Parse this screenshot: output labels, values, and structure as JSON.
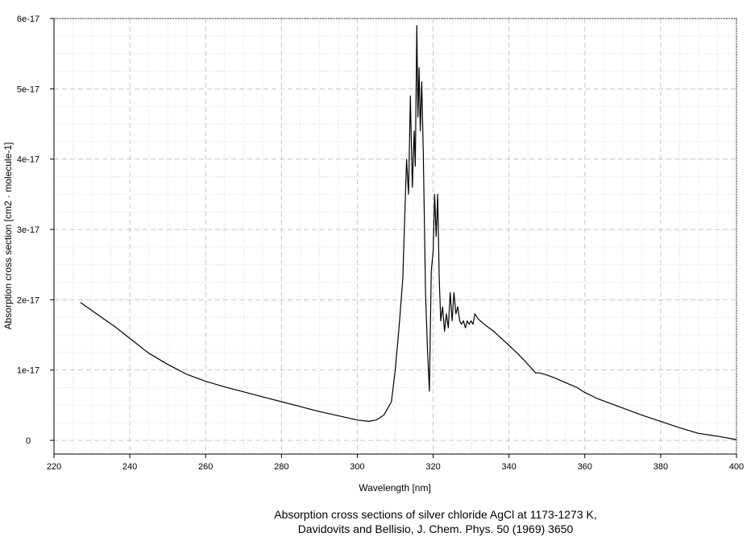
{
  "chart_data": {
    "type": "line",
    "xlabel": "Wavelength [nm]",
    "ylabel": "Absorption cross section [cm2 · molecule-1]",
    "xlim": [
      220,
      400
    ],
    "ylim": [
      0,
      6e-17
    ],
    "x_ticks": [
      220,
      240,
      260,
      280,
      300,
      320,
      340,
      360,
      380,
      400
    ],
    "x_tick_labels": [
      "220",
      "240",
      "260",
      "280",
      "300",
      "320",
      "340",
      "360",
      "380",
      "400"
    ],
    "y_ticks": [
      0,
      1e-17,
      2e-17,
      3e-17,
      4e-17,
      5e-17,
      6e-17
    ],
    "y_tick_labels": [
      "0",
      "1e-17",
      "2e-17",
      "3e-17",
      "4e-17",
      "5e-17",
      "6e-17"
    ],
    "grid": true,
    "series": [
      {
        "color": "#000000",
        "x": [
          227,
          232,
          236,
          240,
          245,
          250,
          255,
          260,
          265,
          270,
          275,
          280,
          285,
          290,
          295,
          300,
          303,
          305,
          307,
          309,
          310,
          311,
          312,
          313,
          313.5,
          314,
          314.5,
          315,
          315.3,
          315.7,
          316,
          316.3,
          316.6,
          317,
          317.4,
          318,
          318.5,
          319,
          319.5,
          320,
          320.4,
          320.8,
          321.2,
          321.6,
          322,
          322.5,
          323,
          323.5,
          324,
          324.5,
          325,
          325.5,
          326,
          326.5,
          327,
          327.5,
          328,
          328.5,
          329,
          329.5,
          330,
          330.5,
          331,
          332,
          334,
          336,
          338,
          340,
          342,
          344,
          346,
          347,
          348,
          350,
          352,
          355,
          358,
          360,
          362,
          363,
          365,
          370,
          375,
          380,
          385,
          390,
          395,
          400
        ],
        "y": [
          1.96e-17,
          1.77e-17,
          1.62e-17,
          1.45e-17,
          1.24e-17,
          1.08e-17,
          9.4e-18,
          8.4e-18,
          7.6e-18,
          6.9e-18,
          6.2e-18,
          5.5e-18,
          4.8e-18,
          4.1e-18,
          3.5e-18,
          2.9e-18,
          2.7e-18,
          2.9e-18,
          3.6e-18,
          5.5e-18,
          1e-17,
          1.6e-17,
          2.3e-17,
          4e-17,
          3.5e-17,
          4.9e-17,
          3.6e-17,
          4.4e-17,
          3.9e-17,
          5.9e-17,
          4.6e-17,
          5.3e-17,
          4.4e-17,
          5.1e-17,
          4.1e-17,
          2.1e-17,
          1.3e-17,
          7e-18,
          2.4e-17,
          2.7e-17,
          3.5e-17,
          2.9e-17,
          3.5e-17,
          2.3e-17,
          1.7e-17,
          1.9e-17,
          1.55e-17,
          1.8e-17,
          1.6e-17,
          2.1e-17,
          1.7e-17,
          2.1e-17,
          1.8e-17,
          1.9e-17,
          1.7e-17,
          1.65e-17,
          1.7e-17,
          1.6e-17,
          1.7e-17,
          1.65e-17,
          1.7e-17,
          1.65e-17,
          1.8e-17,
          1.72e-17,
          1.63e-17,
          1.55e-17,
          1.45e-17,
          1.35e-17,
          1.25e-17,
          1.14e-17,
          1.02e-17,
          9.6e-18,
          9.6e-18,
          9.3e-18,
          8.9e-18,
          8.2e-18,
          7.5e-18,
          6.8e-18,
          6.3e-18,
          6e-18,
          5.6e-18,
          4.6e-18,
          3.6e-18,
          2.7e-18,
          1.8e-18,
          1e-18,
          6e-19,
          1e-19
        ]
      }
    ],
    "caption_line1": "Absorption cross sections of silver chloride AgCl at 1173-1273 K,",
    "caption_line2": "Davidovits and Bellisio, J. Chem. Phys. 50 (1969) 3650"
  }
}
